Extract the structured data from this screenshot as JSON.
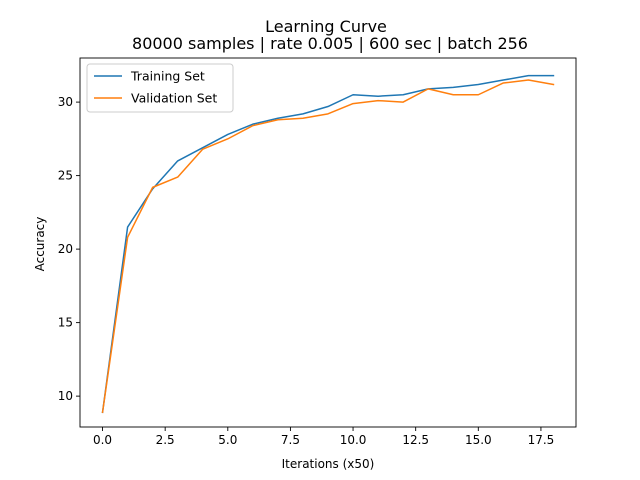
{
  "chart_data": {
    "type": "line",
    "title": "Learning Curve",
    "subtitle": "80000 samples | rate 0.005 | 600 sec | batch 256",
    "xlabel": "Iterations (x50)",
    "ylabel": "Accuracy",
    "xlim": [
      -0.9,
      18.9
    ],
    "ylim": [
      7.9,
      33.0
    ],
    "xticks": [
      0.0,
      2.5,
      5.0,
      7.5,
      10.0,
      12.5,
      15.0,
      17.5
    ],
    "xtick_labels": [
      "0.0",
      "2.5",
      "5.0",
      "7.5",
      "10.0",
      "12.5",
      "15.0",
      "17.5"
    ],
    "yticks": [
      10,
      15,
      20,
      25,
      30
    ],
    "ytick_labels": [
      "10",
      "15",
      "20",
      "25",
      "30"
    ],
    "grid": false,
    "legend_position": "top-left",
    "x": [
      0,
      1,
      2,
      3,
      4,
      5,
      6,
      7,
      8,
      9,
      10,
      11,
      12,
      13,
      14,
      15,
      16,
      17,
      18
    ],
    "series": [
      {
        "name": "Training Set",
        "color": "#1f77b4",
        "values": [
          8.9,
          21.5,
          24.1,
          26.0,
          26.9,
          27.8,
          28.5,
          28.9,
          29.2,
          29.7,
          30.5,
          30.4,
          30.5,
          30.9,
          31.0,
          31.2,
          31.5,
          31.8,
          31.8
        ]
      },
      {
        "name": "Validation Set",
        "color": "#ff7f0e",
        "values": [
          8.9,
          20.8,
          24.2,
          24.9,
          26.8,
          27.5,
          28.4,
          28.8,
          28.9,
          29.2,
          29.9,
          30.1,
          30.0,
          30.9,
          30.5,
          30.5,
          31.3,
          31.5,
          31.2
        ]
      }
    ]
  }
}
